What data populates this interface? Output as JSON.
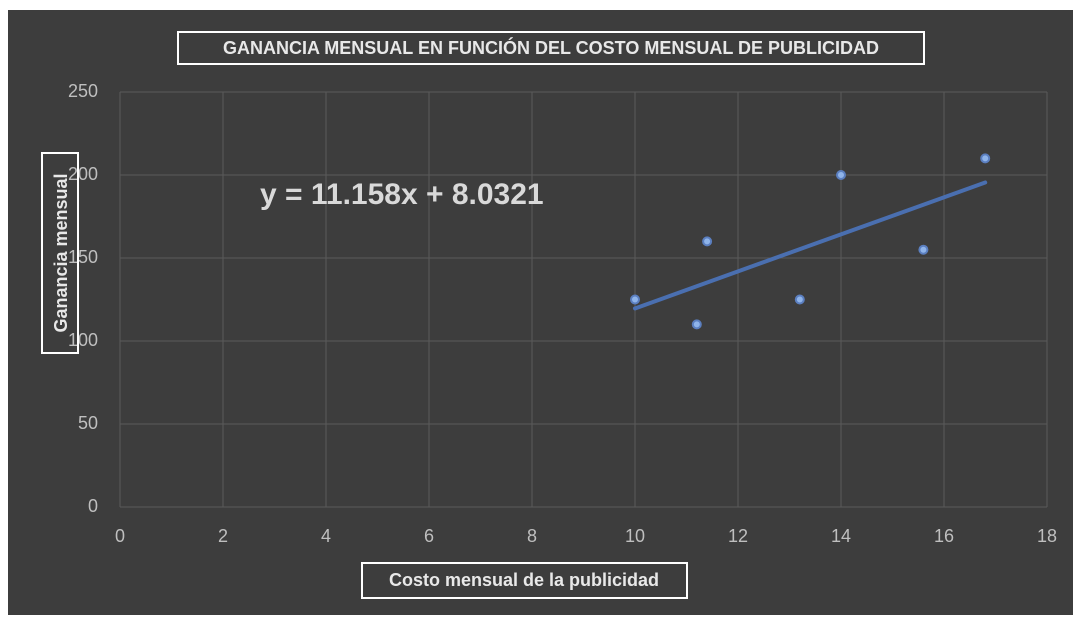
{
  "chart_data": {
    "type": "scatter",
    "title": "GANANCIA MENSUAL EN FUNCIÓN DEL COSTO MENSUAL DE PUBLICIDAD",
    "x_label": "Costo mensual de la publicidad",
    "y_label": "Ganancia mensual",
    "annotation": "y = 11.158x + 8.0321",
    "trendline": "linear",
    "series": [
      {
        "name": "Ganancia mensual",
        "color": "#8fb4ea",
        "x": [
          10,
          11.2,
          11.4,
          13.2,
          14,
          15.6,
          16.8
        ],
        "values": [
          125,
          110,
          160,
          125,
          200,
          155,
          210
        ]
      }
    ],
    "xlim": [
      0,
      18
    ],
    "xticks": [
      0,
      2,
      4,
      6,
      8,
      10,
      12,
      14,
      16,
      18
    ],
    "ylim": [
      0,
      250
    ],
    "yticks": [
      0,
      50,
      100,
      150,
      200,
      250
    ],
    "grid": true
  }
}
